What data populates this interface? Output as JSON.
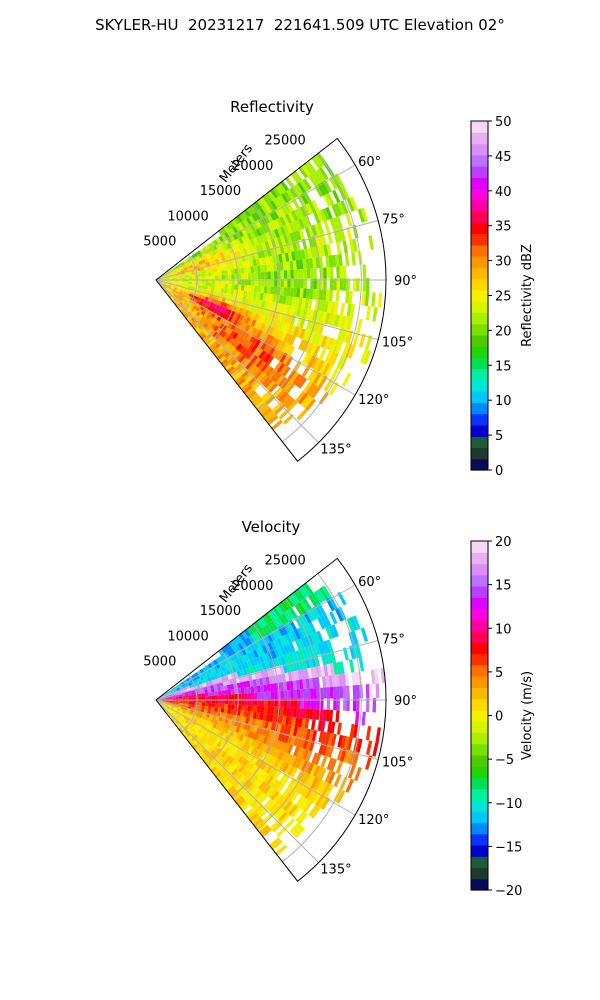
{
  "suptitle": "SKYLER-HU  20231217  221641.509 UTC Elevation 02°",
  "chart_data": [
    {
      "type": "heatmap",
      "subtype": "polar-sector-ppi",
      "title": "Reflectivity",
      "radial_label": "Meters",
      "r_max": 28000,
      "r_ticks": [
        5000,
        10000,
        15000,
        20000,
        25000
      ],
      "r_tick_labels": [
        "5000",
        "10000",
        "15000",
        "20000",
        "25000"
      ],
      "theta_range_deg": [
        52,
        142
      ],
      "theta_ticks": [
        60,
        75,
        90,
        105,
        120,
        135
      ],
      "theta_tick_labels": [
        "60°",
        "75°",
        "90°",
        "105°",
        "120°",
        "135°"
      ],
      "grid": true,
      "colorbar": {
        "label": "Reflectivity dBZ",
        "vmin": 0,
        "vmax": 50,
        "ticks": [
          0,
          5,
          10,
          15,
          20,
          25,
          30,
          35,
          40,
          45,
          50
        ],
        "tick_labels": [
          "0",
          "5",
          "10",
          "15",
          "20",
          "25",
          "30",
          "35",
          "40",
          "45",
          "50"
        ],
        "colors": [
          "#0a0a5a",
          "#1e3a2a",
          "#1f5a3a",
          "#0000cc",
          "#0a33ff",
          "#0088ff",
          "#00c8ff",
          "#00e5d5",
          "#00f0a0",
          "#00e050",
          "#22d400",
          "#4ccc00",
          "#7be000",
          "#a8f000",
          "#d2f500",
          "#f5f000",
          "#ffd800",
          "#ffb800",
          "#ff9800",
          "#ff7000",
          "#ff3000",
          "#ff0000",
          "#ff0055",
          "#ff00a0",
          "#ff00e0",
          "#e000ff",
          "#b840ff",
          "#c070ff",
          "#d890f8",
          "#e8b0f0",
          "#f6d8f6"
        ]
      },
      "field_summary": [
        {
          "theta_deg": 58,
          "range_m": [
            3000,
            24000
          ],
          "value_dbz": 25
        },
        {
          "theta_deg": 72,
          "range_m": [
            0,
            26500
          ],
          "value_dbz": 24
        },
        {
          "theta_deg": 90,
          "range_m": [
            0,
            26500
          ],
          "value_dbz": 22
        },
        {
          "theta_deg": 108,
          "range_m": [
            0,
            26000
          ],
          "value_dbz": 26
        },
        {
          "theta_deg": 122,
          "range_m": [
            0,
            23000
          ],
          "value_dbz": 29
        },
        {
          "theta_deg": 132,
          "range_m": [
            0,
            19000
          ],
          "value_dbz": 32
        },
        {
          "theta_deg": 114,
          "range_m": [
            3000,
            9000
          ],
          "value_dbz": 42
        }
      ]
    },
    {
      "type": "heatmap",
      "subtype": "polar-sector-ppi",
      "title": "Velocity",
      "radial_label": "Meters",
      "r_max": 28000,
      "r_ticks": [
        5000,
        10000,
        15000,
        20000,
        25000
      ],
      "r_tick_labels": [
        "5000",
        "10000",
        "15000",
        "20000",
        "25000"
      ],
      "theta_range_deg": [
        52,
        142
      ],
      "theta_ticks": [
        60,
        75,
        90,
        105,
        120,
        135
      ],
      "theta_tick_labels": [
        "60°",
        "75°",
        "90°",
        "105°",
        "120°",
        "135°"
      ],
      "grid": true,
      "colorbar": {
        "label": "Velocity (m/s)",
        "vmin": -20,
        "vmax": 20,
        "ticks": [
          -20,
          -15,
          -10,
          -5,
          0,
          5,
          10,
          15,
          20
        ],
        "tick_labels": [
          "−20",
          "−15",
          "−10",
          "−5",
          "0",
          "5",
          "10",
          "15",
          "20"
        ],
        "colors": [
          "#0a0a5a",
          "#1e3a2a",
          "#1f5a3a",
          "#0000cc",
          "#0a33ff",
          "#0088ff",
          "#00c8ff",
          "#00e5d5",
          "#00f0a0",
          "#00e050",
          "#22d400",
          "#4ccc00",
          "#7be000",
          "#a8f000",
          "#d2f500",
          "#f5f000",
          "#ffd800",
          "#ffb800",
          "#ff9800",
          "#ff7000",
          "#ff3000",
          "#ff0000",
          "#ff0055",
          "#ff00a0",
          "#ff00e0",
          "#e000ff",
          "#b840ff",
          "#c070ff",
          "#d890f8",
          "#e8b0f0",
          "#f6d8f6"
        ]
      },
      "field_summary": [
        {
          "theta_deg": 57,
          "range_m": [
            12000,
            25000
          ],
          "value_ms": -9
        },
        {
          "theta_deg": 66,
          "range_m": [
            2000,
            26000
          ],
          "value_ms": -12
        },
        {
          "theta_deg": 78,
          "range_m": [
            0,
            27000
          ],
          "value_ms": 15
        },
        {
          "theta_deg": 88,
          "range_m": [
            0,
            27000
          ],
          "value_ms": 10
        },
        {
          "theta_deg": 98,
          "range_m": [
            0,
            27000
          ],
          "value_ms": 8
        },
        {
          "theta_deg": 112,
          "range_m": [
            0,
            26000
          ],
          "value_ms": 3
        },
        {
          "theta_deg": 130,
          "range_m": [
            0,
            22000
          ],
          "value_ms": 2
        }
      ]
    }
  ]
}
